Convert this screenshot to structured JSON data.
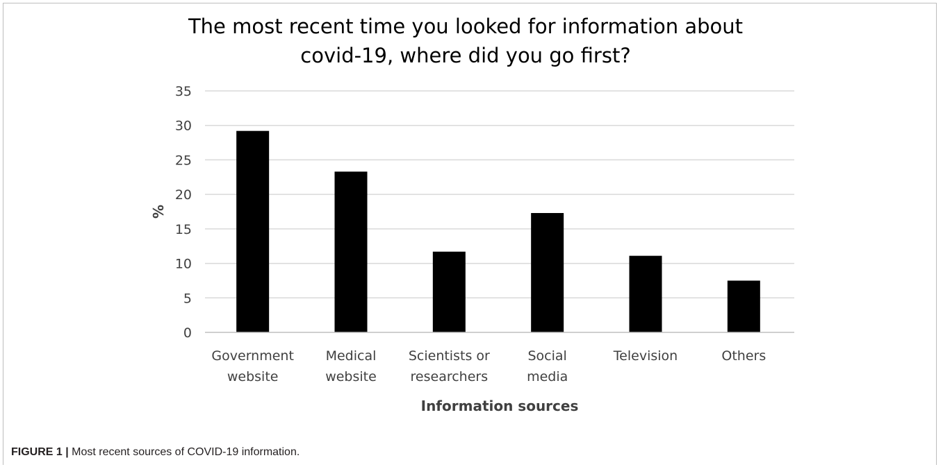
{
  "chart_data": {
    "type": "bar",
    "title_lines": [
      "The most recent time you looked for information about",
      "covid-19, where did you go first?"
    ],
    "categories": [
      [
        "Government",
        "website"
      ],
      [
        "Medical",
        "website"
      ],
      [
        "Scientists or",
        "researchers"
      ],
      [
        "Social",
        "media"
      ],
      [
        "Television"
      ],
      [
        "Others"
      ]
    ],
    "values": [
      29.2,
      23.3,
      11.7,
      17.3,
      11.1,
      7.5
    ],
    "xlabel": "Information sources",
    "ylabel": "%",
    "ylim": [
      0,
      35
    ],
    "yticks": [
      "0",
      "5",
      "10",
      "15",
      "20",
      "25",
      "30",
      "35"
    ],
    "grid": true,
    "bar_color": "#000000",
    "grid_color": "#d9d9d9",
    "axis_color": "#bfbfbf"
  },
  "caption": {
    "label": "FIGURE 1 |",
    "text": " Most recent sources of COVID-19 information."
  }
}
